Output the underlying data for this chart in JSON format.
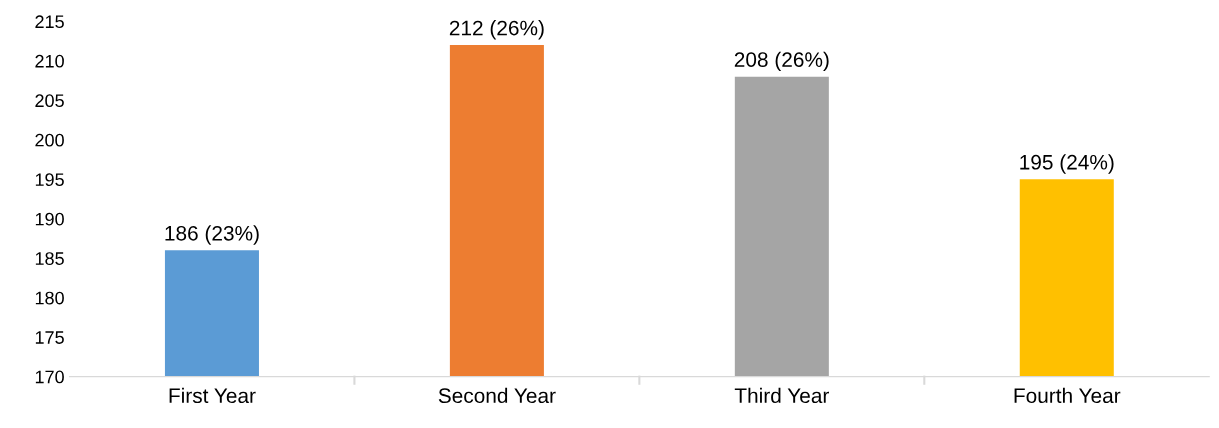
{
  "chart_data": {
    "type": "bar",
    "categories": [
      "First Year",
      "Second Year",
      "Third Year",
      "Fourth Year"
    ],
    "values": [
      186,
      212,
      208,
      195
    ],
    "colors": [
      "#5b9bd5",
      "#ed7d31",
      "#a5a5a5",
      "#ffc000"
    ],
    "value_labels": [
      "186 (23%)",
      "212 (26%)",
      "208 (26%)",
      "195 (24%)"
    ],
    "ylim": [
      170,
      215
    ],
    "yticks": [
      170,
      175,
      180,
      185,
      190,
      195,
      200,
      205,
      210,
      215
    ],
    "grid": false
  }
}
